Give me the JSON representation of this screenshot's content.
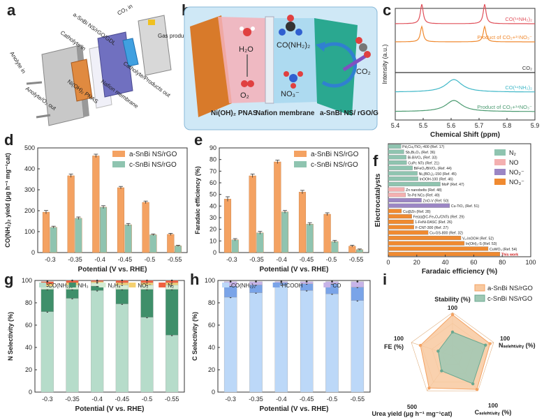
{
  "panel_labels": [
    "a",
    "b",
    "c",
    "d",
    "e",
    "f",
    "g",
    "h",
    "i"
  ],
  "schematic_a": {
    "labels": [
      "a-SnBi NS/rGO/GDL",
      "CO₂ in",
      "Gas products",
      "Catholyte in",
      "Catholyte/Products out",
      "Ni(OH)₂ PNAS",
      "Nafion membrane",
      "Anolyte in",
      "Anolyte/O₂ out"
    ]
  },
  "schematic_b": {
    "labels": [
      "H₂O",
      "O₂",
      "CO(NH₂)₂",
      "NO₃⁻",
      "CO₂",
      "Ni(OH)₂ PNAS",
      "Nafion membrane",
      "a-SnBi NS/ rGO/GDL"
    ]
  },
  "chart_data": [
    {
      "id": "c",
      "type": "line",
      "xlabel": "Chemical Shift (ppm)",
      "ylabel": "Intensity (a.u.)",
      "xlim": [
        5.9,
        5.4
      ],
      "xticks": [
        "5.4",
        "5.5",
        "5.6",
        "5.7",
        "5.8",
        "5.9"
      ],
      "series": [
        {
          "name": "CO(¹⁴NH₂)₂",
          "color": "#e0505a",
          "type": "doublet",
          "centers": [
            5.495,
            5.72
          ]
        },
        {
          "name": "Product of CO₂+¹⁵NO₃⁻",
          "color": "#f08a30",
          "type": "doublet",
          "centers": [
            5.495,
            5.72
          ]
        },
        {
          "name": "CO₂",
          "color": "#333333",
          "type": "flat"
        },
        {
          "name": "CO(¹⁴NH₂)₂",
          "color": "#40b8c8",
          "type": "singlet",
          "centers": [
            5.61
          ]
        },
        {
          "name": "Product of CO₂+¹⁴NO₃⁻",
          "color": "#4a9a70",
          "type": "singlet",
          "centers": [
            5.61
          ]
        }
      ]
    },
    {
      "id": "d",
      "type": "bar",
      "categories": [
        "-0.3",
        "-0.35",
        "-0.4",
        "-0.45",
        "-0.5",
        "-0.55"
      ],
      "xlabel": "Potential (V vs. RHE)",
      "ylabel": "CO(NH₂)₂ yield (μg h⁻¹ mg⁻¹cat)",
      "ylim": [
        0,
        500
      ],
      "yticks": [
        "0",
        "100",
        "200",
        "300",
        "400",
        "500"
      ],
      "series": [
        {
          "name": "a-SnBi NS/rGO",
          "color": "#f4a262",
          "values": [
            193,
            367,
            462,
            310,
            240,
            87
          ],
          "errors": [
            8,
            8,
            8,
            6,
            6,
            5
          ]
        },
        {
          "name": "c-SnBi NS/rGO",
          "color": "#8fc4b0",
          "values": [
            121,
            164,
            217,
            133,
            85,
            32
          ],
          "errors": [
            5,
            6,
            7,
            6,
            4,
            3
          ]
        }
      ]
    },
    {
      "id": "e",
      "type": "bar",
      "categories": [
        "-0.3",
        "-0.35",
        "-0.4",
        "-0.45",
        "-0.5",
        "-0.55"
      ],
      "xlabel": "Potential (V vs. RHE)",
      "ylabel": "Faradaic efficiency (%)",
      "ylim": [
        0,
        90
      ],
      "yticks": [
        "0",
        "10",
        "20",
        "30",
        "40",
        "50",
        "60",
        "70",
        "80",
        "90"
      ],
      "series": [
        {
          "name": "a-SnBi NS/rGO",
          "color": "#f4a262",
          "values": [
            46,
            66,
            78,
            52,
            33,
            5.5
          ],
          "errors": [
            2,
            1.5,
            1.5,
            1.5,
            1.2,
            0.8
          ]
        },
        {
          "name": "c-SnBi NS/rGO",
          "color": "#8fc4b0",
          "values": [
            11,
            17,
            35,
            24.5,
            9.5,
            2.5
          ],
          "errors": [
            1,
            1.2,
            1.2,
            1.2,
            1,
            0.6
          ]
        }
      ]
    },
    {
      "id": "f",
      "type": "bar",
      "orientation": "horizontal",
      "xlabel": "Faradaic efficiency (%)",
      "ylabel": "Electrocatalysts",
      "xlim": [
        0,
        100
      ],
      "xticks": [
        "0",
        "20",
        "40",
        "60",
        "80",
        "100"
      ],
      "legend": [
        {
          "name": "N₂",
          "color": "#8fc4b0"
        },
        {
          "name": "NO",
          "color": "#f4b0b0"
        },
        {
          "name": "NO₂⁻",
          "color": "#9b86c4"
        },
        {
          "name": "NO₃⁻",
          "color": "#f08a30"
        }
      ],
      "rows": [
        {
          "label": "Pd₁Cu₁/TiO₂-400 (Ref. 17)",
          "value": 8.9,
          "group": "N₂"
        },
        {
          "label": "Sb₂Bi₂O₃ (Ref. 36)",
          "value": 11,
          "group": "N₂"
        },
        {
          "label": "Bi-BiVO₄ (Ref. 33)",
          "value": 12.6,
          "group": "N₂"
        },
        {
          "label": "CuPc NTs (Ref. 21)",
          "value": 12.9,
          "group": "N₂"
        },
        {
          "label": "BiFeO₃/BiVO₄ (Ref. 44)",
          "value": 17,
          "group": "N₂"
        },
        {
          "label": "Ni₃(BO₃)₂-150 (Ref. 45)",
          "value": 20.4,
          "group": "N₂"
        },
        {
          "label": "InOOH-100 (Ref. 46)",
          "value": 20.9,
          "group": "N₂"
        },
        {
          "label": "MoP (Ref. 47)",
          "value": 36.5,
          "group": "N₂"
        },
        {
          "label": "Zn nanobelts (Ref. 48)",
          "value": 11.3,
          "group": "NO"
        },
        {
          "label": "Te-Pd NCs (Ref. 49)",
          "value": 12.2,
          "group": "NO"
        },
        {
          "label": "ZnO-V (Ref. 50)",
          "value": 23.3,
          "group": "NO₂⁻"
        },
        {
          "label": "Cu-TiO₂ (Ref. 51)",
          "value": 43.1,
          "group": "NO₂⁻"
        },
        {
          "label": "Cu@Zn (Ref. 28)",
          "value": 9.3,
          "group": "NO₃⁻"
        },
        {
          "label": "Fe(a)@C-Fe₃O₄/CNTs (Ref. 29)",
          "value": 16.5,
          "group": "NO₃⁻"
        },
        {
          "label": "1-FeNi-DASC (Ref. 26)",
          "value": 17.8,
          "group": "NO₃⁻"
        },
        {
          "label": "F-CNT-300 (Ref. 27)",
          "value": 18,
          "group": "NO₃⁻"
        },
        {
          "label": "Cu-GS-800 (Ref. 32)",
          "value": 28,
          "group": "NO₃⁻"
        },
        {
          "label": "Vₒ-InOOH (Ref. 52)",
          "value": 51,
          "group": "NO₃⁻"
        },
        {
          "label": "In(OH)₃-S (Ref. 53)",
          "value": 53.4,
          "group": "NO₃⁻"
        },
        {
          "label": "CuWO₄ (Ref. 54)",
          "value": 70.1,
          "group": "NO₃⁻"
        },
        {
          "label": "This work",
          "value": 78.4,
          "group": "NO₃⁻",
          "highlight": true
        }
      ]
    },
    {
      "id": "g",
      "type": "bar",
      "stacked": true,
      "categories": [
        "-0.3",
        "-0.35",
        "-0.4",
        "-0.45",
        "-0.5",
        "-0.55"
      ],
      "xlabel": "Potential (V vs. RHE)",
      "ylabel": "N Selectivity (%)",
      "ylim": [
        0,
        100
      ],
      "yticks": [
        "0",
        "20",
        "40",
        "60",
        "80",
        "100"
      ],
      "series": [
        {
          "name": "CO(NH₂)₂",
          "color": "#b6dcca",
          "values": [
            72,
            84,
            91,
            79,
            67,
            51
          ]
        },
        {
          "name": "NH₃",
          "color": "#3f8f6a",
          "values": [
            20,
            8,
            4,
            13,
            25,
            41
          ]
        },
        {
          "name": "N₂H₄",
          "color": "#d4ecd4",
          "values": [
            3,
            4,
            3,
            4,
            4,
            4
          ]
        },
        {
          "name": "NO₂⁻",
          "color": "#f4d070",
          "values": [
            2,
            2,
            1,
            2,
            2,
            2
          ]
        },
        {
          "name": "N₂",
          "color": "#f06040",
          "values": [
            2,
            2,
            1,
            2,
            2,
            2
          ]
        }
      ]
    },
    {
      "id": "h",
      "type": "bar",
      "stacked": true,
      "categories": [
        "-0.3",
        "-0.35",
        "-0.4",
        "-0.45",
        "-0.5",
        "-0.55"
      ],
      "xlabel": "Potential (V vs. RHE)",
      "ylabel": "C Selectivity (%)",
      "ylim": [
        0,
        100
      ],
      "yticks": [
        "0",
        "20",
        "40",
        "60",
        "80",
        "100"
      ],
      "series": [
        {
          "name": "CO(NH₂)₂",
          "color": "#bcd8f8",
          "values": [
            85,
            89,
            96,
            91,
            88,
            82
          ]
        },
        {
          "name": "HCOOH",
          "color": "#7aa4e8",
          "values": [
            10,
            7,
            2,
            6,
            9,
            12
          ]
        },
        {
          "name": "CO",
          "color": "#c7b4e8",
          "values": [
            4,
            3,
            1,
            2,
            2,
            5
          ]
        }
      ]
    },
    {
      "id": "i",
      "type": "radar",
      "axes": [
        {
          "label": "Stability (%)",
          "max_label": "100"
        },
        {
          "label": "Nₛₑₗₑₕₜᵢᵥᵢₜᵧ (%)",
          "max_label": "100"
        },
        {
          "label": "Cₛₑₗₑₕₜᵢᵥᵢₜᵧ (%)",
          "max_label": "100"
        },
        {
          "label": "Urea yield (μg h⁻¹ mg⁻¹cat)",
          "max_label": "500"
        },
        {
          "label": "FE (%)",
          "max_label": "100"
        }
      ],
      "series": [
        {
          "name": "a-SnBi NS/rGO",
          "color": "#f4a262",
          "fill": "#f8c9a0",
          "values": [
            95,
            91,
            96,
            92,
            78
          ]
        },
        {
          "name": "c-SnBi NS/rGO",
          "color": "#6aa890",
          "fill": "#9fc8b4",
          "values": [
            55,
            80,
            80,
            43,
            35
          ]
        }
      ]
    }
  ]
}
